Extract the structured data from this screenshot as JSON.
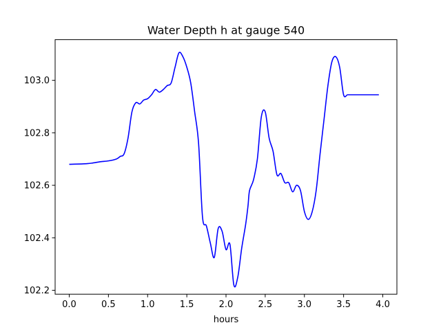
{
  "chart_data": {
    "type": "line",
    "title": "Water Depth h at gauge 540",
    "xlabel": "hours",
    "ylabel": "",
    "xlim": [
      -0.18,
      4.18
    ],
    "ylim": [
      102.185,
      103.155
    ],
    "xticks": [
      0.0,
      0.5,
      1.0,
      1.5,
      2.0,
      2.5,
      3.0,
      3.5,
      4.0
    ],
    "xtick_labels": [
      "0.0",
      "0.5",
      "1.0",
      "1.5",
      "2.0",
      "2.5",
      "3.0",
      "3.5",
      "4.0"
    ],
    "yticks": [
      102.2,
      102.4,
      102.6,
      102.8,
      103.0
    ],
    "ytick_labels": [
      "102.2",
      "102.4",
      "102.6",
      "102.8",
      "103.0"
    ],
    "grid": false,
    "legend": "none",
    "series": [
      {
        "color": "#0000ff",
        "x": [
          0.0,
          0.2,
          0.3,
          0.4,
          0.5,
          0.6,
          0.65,
          0.7,
          0.75,
          0.8,
          0.85,
          0.9,
          0.95,
          1.0,
          1.05,
          1.1,
          1.15,
          1.2,
          1.25,
          1.3,
          1.35,
          1.4,
          1.45,
          1.5,
          1.55,
          1.6,
          1.65,
          1.7,
          1.75,
          1.8,
          1.85,
          1.9,
          1.95,
          2.0,
          2.05,
          2.1,
          2.15,
          2.2,
          2.25,
          2.28,
          2.3,
          2.35,
          2.4,
          2.45,
          2.5,
          2.55,
          2.6,
          2.65,
          2.7,
          2.75,
          2.8,
          2.85,
          2.9,
          2.95,
          3.0,
          3.05,
          3.1,
          3.15,
          3.2,
          3.25,
          3.3,
          3.35,
          3.4,
          3.45,
          3.5,
          3.55,
          3.6,
          3.7,
          3.8,
          3.85,
          3.9,
          3.95,
          4.0
        ],
        "y": [
          102.68,
          102.682,
          102.685,
          102.69,
          102.693,
          102.7,
          102.71,
          102.72,
          102.78,
          102.88,
          102.915,
          102.91,
          102.925,
          102.93,
          102.945,
          102.965,
          102.955,
          102.965,
          102.98,
          102.99,
          103.05,
          103.105,
          103.09,
          103.05,
          102.99,
          102.88,
          102.76,
          102.48,
          102.445,
          102.38,
          102.325,
          102.435,
          102.425,
          102.355,
          102.375,
          102.22,
          102.25,
          102.36,
          102.45,
          102.52,
          102.58,
          102.62,
          102.7,
          102.86,
          102.88,
          102.78,
          102.73,
          102.64,
          102.645,
          102.61,
          102.61,
          102.575,
          102.6,
          102.58,
          102.5,
          102.47,
          102.5,
          102.58,
          102.72,
          102.85,
          102.98,
          103.07,
          103.09,
          103.05,
          102.945,
          102.945,
          102.945,
          102.945,
          102.945,
          102.945,
          102.945,
          102.945,
          102.945
        ]
      }
    ]
  }
}
